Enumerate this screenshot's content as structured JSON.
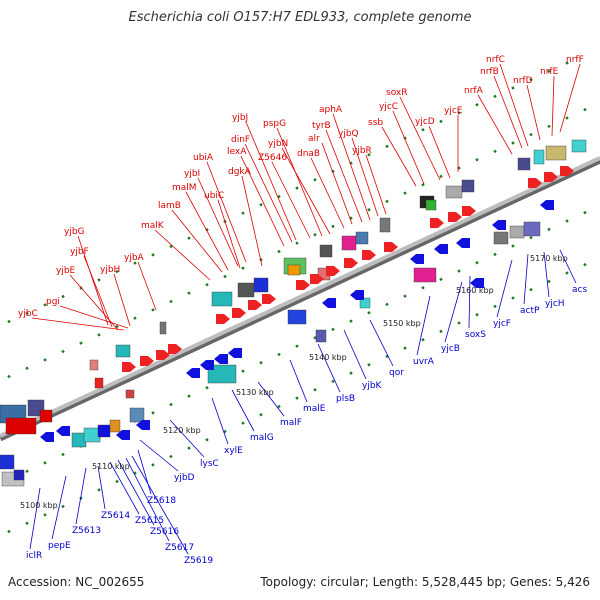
{
  "title": "Escherichia coli O157:H7 EDL933, complete genome",
  "footer": {
    "accession": "Accession: NC_002655",
    "topology": "Topology: circular; Length: 5,528,445 bp; Genes: 5,426"
  },
  "colors": {
    "forward_label": "#dd0000",
    "reverse_label": "#0000cc",
    "backbone": "#888888",
    "tick": "#227722"
  },
  "kbp_labels": [
    "5100 kbp",
    "5110 kbp",
    "5120 kbp",
    "5130 kbp",
    "5140 kbp",
    "5150 kbp",
    "5160 kbp",
    "5170 kbp"
  ],
  "forward_genes": [
    "yjbC",
    "pgi",
    "yjbE",
    "yjbF",
    "yjbG",
    "yjbH",
    "yjbA",
    "malK",
    "lamB",
    "malM",
    "yjbI",
    "ubiA",
    "ubiC",
    "dgkA",
    "lexA",
    "dinF",
    "yjbJ",
    "Z5646",
    "pspG",
    "yjbN",
    "dnaB",
    "alr",
    "tyrB",
    "aphA",
    "yjbQ",
    "yjbR",
    "ssb",
    "yjcC",
    "soxR",
    "yjcD",
    "yjcE",
    "nrfA",
    "nrfB",
    "nrfC",
    "nrfD",
    "nrfE",
    "nrfF"
  ],
  "reverse_genes": [
    "iclR",
    "pepE",
    "Z5613",
    "Z5614",
    "Z5615",
    "Z5616",
    "Z5617",
    "Z5619",
    "Z5618",
    "yjbD",
    "lysC",
    "xylE",
    "malG",
    "malF",
    "malE",
    "plsB",
    "yjbK",
    "qor",
    "uvrA",
    "yjcB",
    "soxS",
    "yjcF",
    "actP",
    "yjcH",
    "acs"
  ]
}
